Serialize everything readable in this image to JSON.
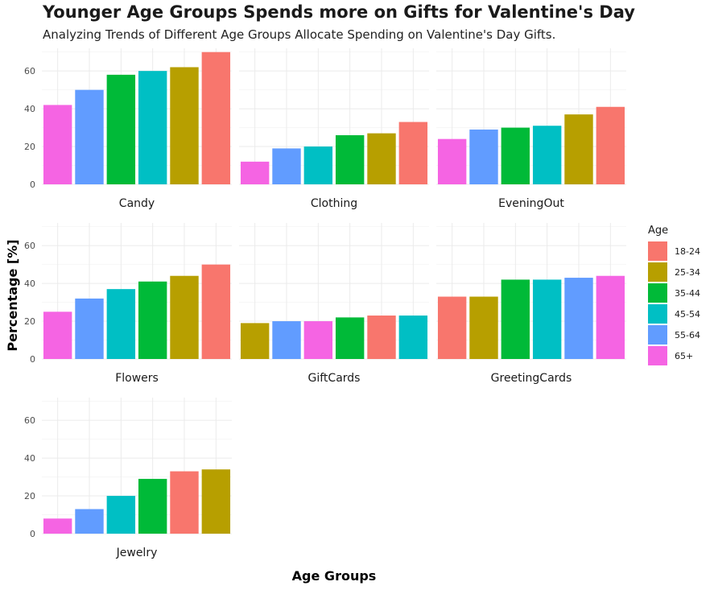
{
  "chart_data": {
    "type": "bar",
    "title": "Younger Age Groups Spends more on Gifts for Valentine's Day",
    "subtitle": "Analyzing Trends of Different Age Groups Allocate Spending on Valentine's Day Gifts.",
    "xlabel": "Age Groups",
    "ylabel": "Percentage [%]",
    "ylim": [
      0,
      72
    ],
    "yticks": [
      0,
      20,
      40,
      60
    ],
    "grid": true,
    "legend": {
      "title": "Age",
      "position": "right",
      "entries": [
        {
          "label": "18-24",
          "color": "#F8766D"
        },
        {
          "label": "25-34",
          "color": "#B79F00"
        },
        {
          "label": "35-44",
          "color": "#00BA38"
        },
        {
          "label": "45-54",
          "color": "#00BFC4"
        },
        {
          "label": "55-64",
          "color": "#619CFF"
        },
        {
          "label": "65+",
          "color": "#F564E3"
        }
      ]
    },
    "facets": [
      {
        "name": "Candy",
        "bars": [
          {
            "age": "65+",
            "value": 42
          },
          {
            "age": "55-64",
            "value": 50
          },
          {
            "age": "35-44",
            "value": 58
          },
          {
            "age": "45-54",
            "value": 60
          },
          {
            "age": "25-34",
            "value": 62
          },
          {
            "age": "18-24",
            "value": 70
          }
        ]
      },
      {
        "name": "Clothing",
        "bars": [
          {
            "age": "65+",
            "value": 12
          },
          {
            "age": "55-64",
            "value": 19
          },
          {
            "age": "45-54",
            "value": 20
          },
          {
            "age": "35-44",
            "value": 26
          },
          {
            "age": "25-34",
            "value": 27
          },
          {
            "age": "18-24",
            "value": 33
          }
        ]
      },
      {
        "name": "EveningOut",
        "bars": [
          {
            "age": "65+",
            "value": 24
          },
          {
            "age": "55-64",
            "value": 29
          },
          {
            "age": "35-44",
            "value": 30
          },
          {
            "age": "45-54",
            "value": 31
          },
          {
            "age": "25-34",
            "value": 37
          },
          {
            "age": "18-24",
            "value": 41
          }
        ]
      },
      {
        "name": "Flowers",
        "bars": [
          {
            "age": "65+",
            "value": 25
          },
          {
            "age": "55-64",
            "value": 32
          },
          {
            "age": "45-54",
            "value": 37
          },
          {
            "age": "35-44",
            "value": 41
          },
          {
            "age": "25-34",
            "value": 44
          },
          {
            "age": "18-24",
            "value": 50
          }
        ]
      },
      {
        "name": "GiftCards",
        "bars": [
          {
            "age": "25-34",
            "value": 19
          },
          {
            "age": "55-64",
            "value": 20
          },
          {
            "age": "65+",
            "value": 20
          },
          {
            "age": "35-44",
            "value": 22
          },
          {
            "age": "18-24",
            "value": 23
          },
          {
            "age": "45-54",
            "value": 23
          }
        ]
      },
      {
        "name": "GreetingCards",
        "bars": [
          {
            "age": "18-24",
            "value": 33
          },
          {
            "age": "25-34",
            "value": 33
          },
          {
            "age": "35-44",
            "value": 42
          },
          {
            "age": "45-54",
            "value": 42
          },
          {
            "age": "55-64",
            "value": 43
          },
          {
            "age": "65+",
            "value": 44
          }
        ]
      },
      {
        "name": "Jewelry",
        "bars": [
          {
            "age": "65+",
            "value": 8
          },
          {
            "age": "55-64",
            "value": 13
          },
          {
            "age": "45-54",
            "value": 20
          },
          {
            "age": "35-44",
            "value": 29
          },
          {
            "age": "18-24",
            "value": 33
          },
          {
            "age": "25-34",
            "value": 34
          }
        ]
      }
    ]
  }
}
